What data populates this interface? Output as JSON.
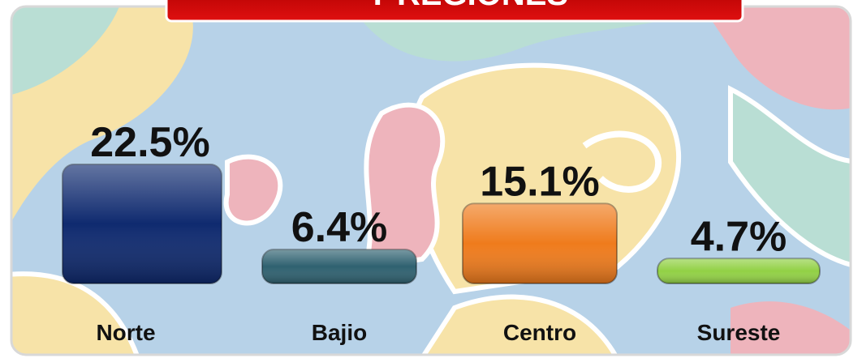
{
  "chart_data": {
    "type": "bar",
    "title": "Y REGIONES",
    "categories": [
      "Norte",
      "Bajio",
      "Centro",
      "Sureste"
    ],
    "values": [
      22.5,
      6.4,
      15.1,
      4.7
    ],
    "value_labels": [
      "22.5%",
      "6.4%",
      "15.1%",
      "4.7%"
    ],
    "colors": [
      "#0f2a6f",
      "#2f6170",
      "#ef7b1c",
      "#92d145"
    ]
  }
}
